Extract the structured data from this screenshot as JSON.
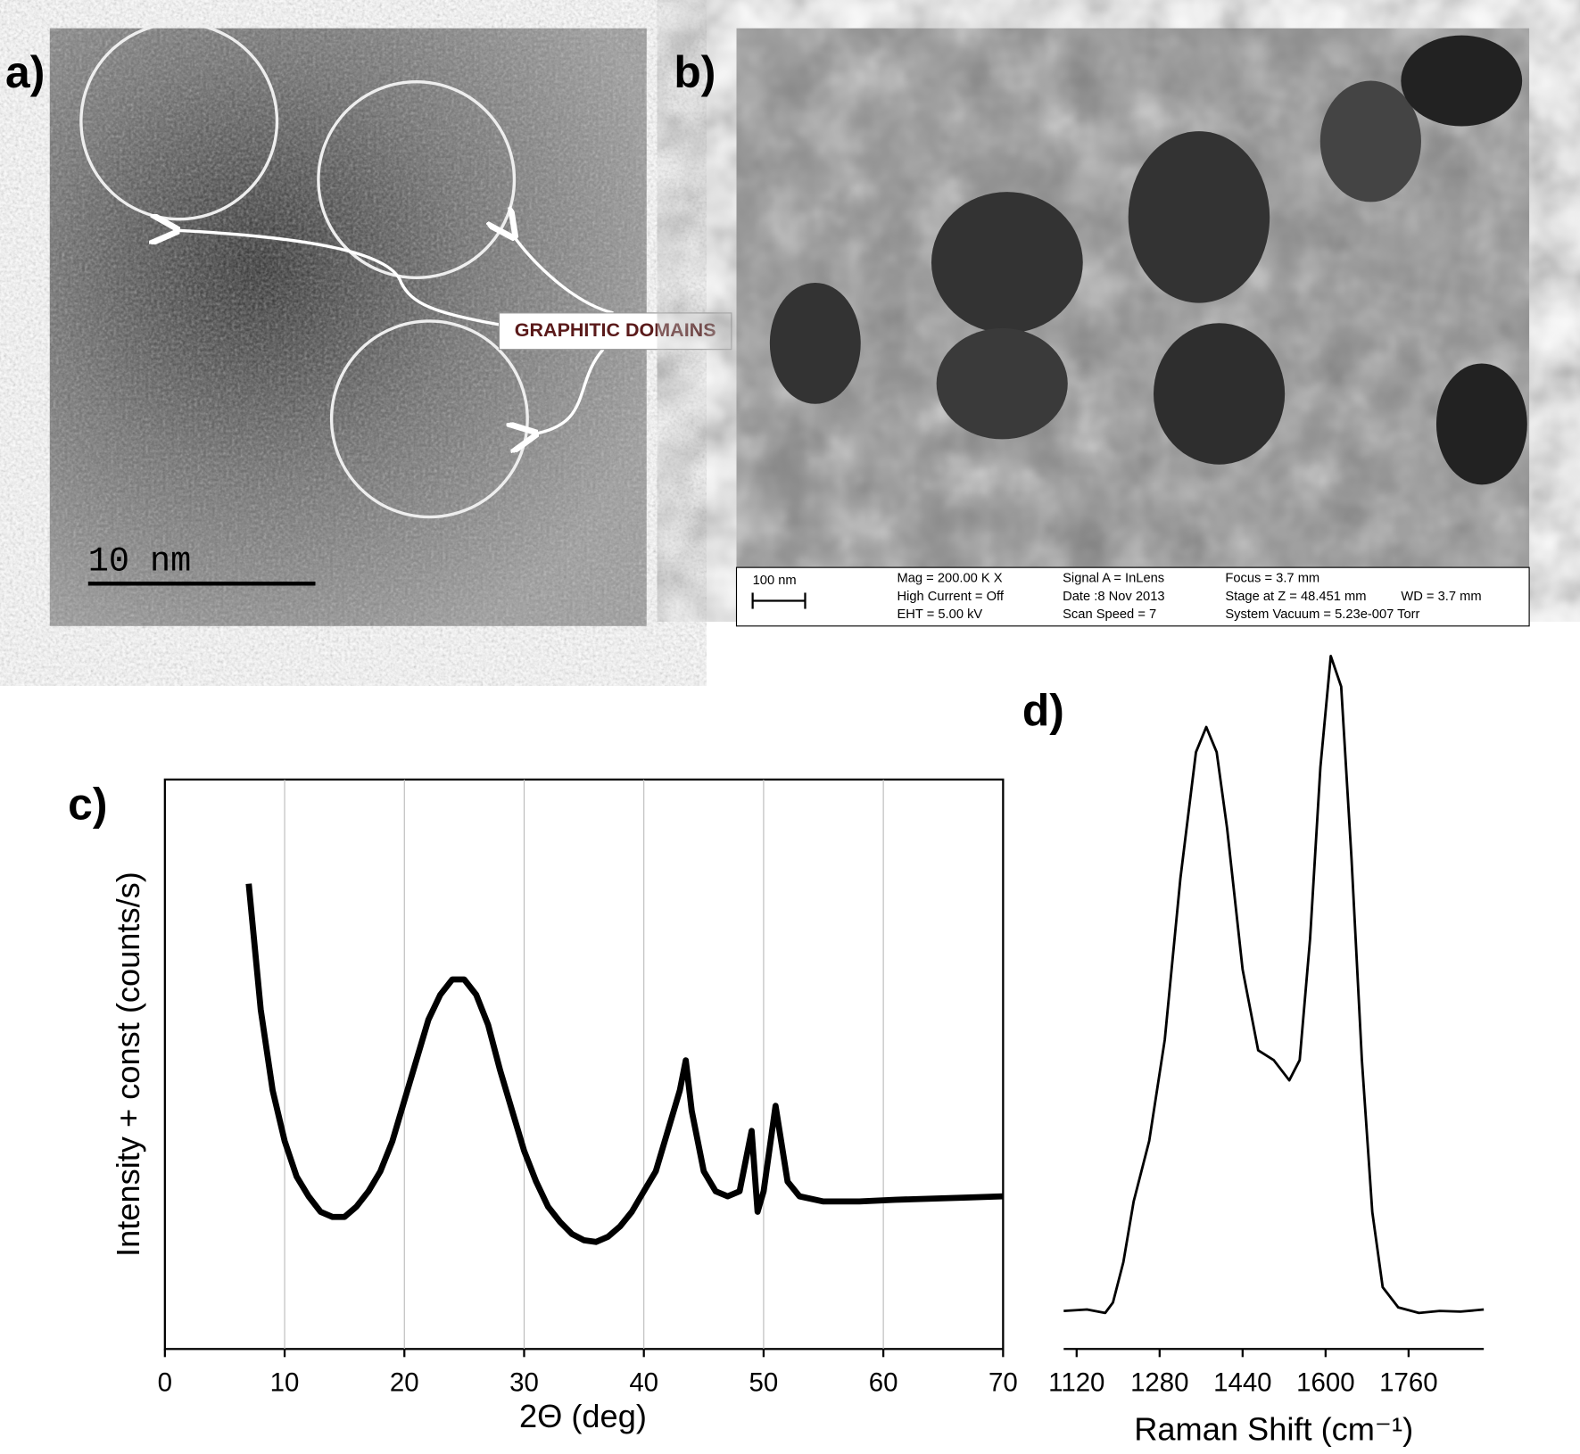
{
  "images": [
    {
      "label": "a)",
      "annotation": "GRAPHITIC DOMAINS",
      "scale_bar": "10 nm"
    },
    {
      "label": "b)",
      "scale_bar": "100 nm",
      "info": [
        "Mag = 200.00 K X",
        "High Current = Off",
        "EHT =  5.00 kV",
        "Signal A = InLens",
        "Date :8 Nov 2013",
        "Scan Speed = 7",
        "Focus =  3.7 mm",
        "Stage at Z = 48.451 mm",
        "WD =  3.7 mm",
        "System Vacuum = 5.23e-007 Torr"
      ]
    }
  ],
  "chart_data": [
    {
      "type": "line",
      "label": "c)",
      "xlabel": "2Θ  (deg)",
      "ylabel": "Intensity + const  (counts/s)",
      "x": [
        7,
        8,
        9,
        10,
        11,
        12,
        13,
        14,
        15,
        16,
        17,
        18,
        19,
        20,
        21,
        22,
        23,
        24,
        25,
        26,
        27,
        28,
        29,
        30,
        31,
        32,
        33,
        34,
        35,
        36,
        37,
        38,
        39,
        40,
        41,
        42,
        43,
        43.5,
        44,
        45,
        46,
        47,
        48,
        49,
        49.5,
        50,
        51,
        52,
        53,
        55,
        58,
        61,
        64,
        67,
        70
      ],
      "values": [
        81.7,
        59.6,
        45.4,
        36.5,
        30.3,
        26.8,
        24.1,
        23.2,
        23.2,
        25,
        27.7,
        31.2,
        36.5,
        43.6,
        50.7,
        57.8,
        62.2,
        64.9,
        64.9,
        62.2,
        56.9,
        48.9,
        41.8,
        34.8,
        29.4,
        25,
        22.3,
        20.2,
        19.1,
        18.8,
        19.7,
        21.5,
        24.1,
        27.7,
        31.2,
        38.3,
        45.4,
        50.7,
        41.8,
        31.2,
        27.7,
        26.8,
        27.7,
        38.3,
        24.1,
        27.7,
        42.7,
        29.4,
        26.8,
        25.9,
        25.9,
        26.2,
        26.4,
        26.6,
        26.8
      ],
      "color": "#000000",
      "xlim": [
        0,
        70
      ],
      "ylim": [
        0,
        100
      ],
      "xticks": [
        0,
        10,
        20,
        30,
        40,
        50,
        60,
        70
      ],
      "grid": true
    },
    {
      "type": "line",
      "label": "d)",
      "xlabel": "Raman Shift  (cm⁻¹)",
      "x": [
        1095,
        1140,
        1175,
        1190,
        1210,
        1230,
        1260,
        1290,
        1320,
        1350,
        1370,
        1390,
        1410,
        1440,
        1470,
        1500,
        1530,
        1550,
        1570,
        1590,
        1610,
        1630,
        1650,
        1670,
        1690,
        1710,
        1740,
        1780,
        1820,
        1860,
        1905
      ],
      "values": [
        4.6,
        4.8,
        4.3,
        5.8,
        11.6,
        20.3,
        29,
        43.5,
        66.7,
        84.8,
        88.4,
        84.8,
        73.9,
        53.6,
        42,
        40.6,
        37.7,
        40.6,
        58,
        82.6,
        98.6,
        94.2,
        69.6,
        40.6,
        18.8,
        8,
        5.1,
        4.3,
        4.6,
        4.5,
        4.8
      ],
      "color": "#000000",
      "xlim": [
        1095,
        1905
      ],
      "ylim": [
        0,
        100
      ],
      "xticks": [
        1120,
        1280,
        1440,
        1600,
        1760
      ],
      "grid": false
    }
  ]
}
